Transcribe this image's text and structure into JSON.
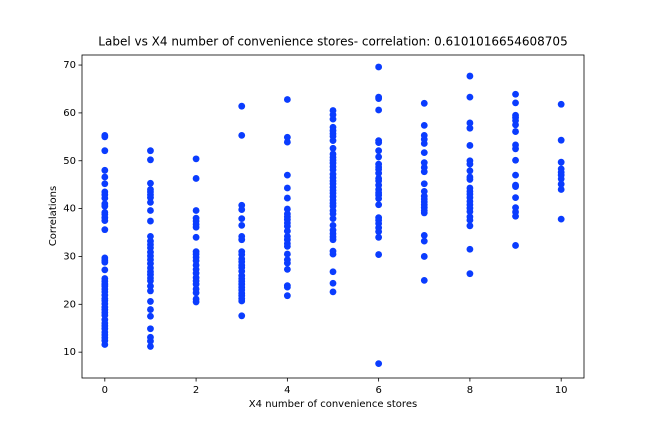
{
  "chart_data": {
    "type": "scatter",
    "title": "Label vs X4 number of convenience stores- correlation: 0.6101016654608705",
    "xlabel": "X4 number of convenience stores",
    "ylabel": "Correlations",
    "xlim": [
      -0.5,
      10.5
    ],
    "ylim": [
      4.6,
      72.1
    ],
    "xticks": [
      0,
      2,
      4,
      6,
      8,
      10
    ],
    "yticks": [
      10,
      20,
      30,
      40,
      50,
      60,
      70
    ],
    "color": "#0a3cff",
    "x": [
      0,
      0,
      0,
      0,
      0,
      0,
      0,
      0,
      0,
      0,
      0,
      0,
      0,
      0,
      0,
      0,
      0,
      0,
      0,
      0,
      0,
      0,
      0,
      0,
      0,
      0,
      0,
      0,
      0,
      0,
      0,
      0,
      0,
      0,
      0,
      0,
      0,
      0,
      0,
      0,
      0,
      0,
      0,
      1,
      1,
      1,
      1,
      1,
      1,
      1,
      1,
      1,
      1,
      1,
      1,
      1,
      1,
      1,
      1,
      1,
      1,
      1,
      1,
      1,
      1,
      1,
      1,
      1,
      1,
      1,
      1,
      1,
      1,
      1,
      1,
      2,
      2,
      2,
      2,
      2,
      2,
      2,
      2,
      2,
      2,
      2,
      2,
      2,
      2,
      2,
      2,
      2,
      2,
      2,
      2,
      2,
      2,
      3,
      3,
      3,
      3,
      3,
      3,
      3,
      3,
      3,
      3,
      3,
      3,
      3,
      3,
      3,
      3,
      3,
      3,
      3,
      3,
      3,
      3,
      3,
      3,
      3,
      3,
      4,
      4,
      4,
      4,
      4,
      4,
      4,
      4,
      4,
      4,
      4,
      4,
      4,
      4,
      4,
      4,
      4,
      4,
      4,
      4,
      4,
      4,
      4,
      4,
      5,
      5,
      5,
      5,
      5,
      5,
      5,
      5,
      5,
      5,
      5,
      5,
      5,
      5,
      5,
      5,
      5,
      5,
      5,
      5,
      5,
      5,
      5,
      5,
      5,
      5,
      5,
      5,
      5,
      5,
      5,
      5,
      5,
      5,
      5,
      5,
      5,
      5,
      5,
      6,
      6,
      6,
      6,
      6,
      6,
      6,
      6,
      6,
      6,
      6,
      6,
      6,
      6,
      6,
      6,
      6,
      6,
      6,
      6,
      6,
      6,
      6,
      6,
      6,
      6,
      6,
      6,
      7,
      7,
      7,
      7,
      7,
      7,
      7,
      7,
      7,
      7,
      7,
      7,
      7,
      7,
      7,
      7,
      7,
      7,
      7,
      7,
      7,
      7,
      8,
      8,
      8,
      8,
      8,
      8,
      8,
      8,
      8,
      8,
      8,
      8,
      8,
      8,
      8,
      8,
      8,
      8,
      8,
      8,
      8,
      8,
      8,
      9,
      9,
      9,
      9,
      9,
      9,
      9,
      9,
      9,
      9,
      9,
      9,
      9,
      9,
      9,
      9,
      9,
      9,
      10,
      10,
      10,
      10,
      10,
      10,
      10,
      10,
      10,
      10
    ],
    "y": [
      55.3,
      55,
      52.1,
      48,
      46.6,
      45.2,
      43.5,
      42.9,
      42.2,
      41,
      40.5,
      39.2,
      38.8,
      38.1,
      37.5,
      35.6,
      29.7,
      29.2,
      28.8,
      27.2,
      25.4,
      24.8,
      24.2,
      23.8,
      23.2,
      22.6,
      21.9,
      21.2,
      20.8,
      20.1,
      19.4,
      18.9,
      18.3,
      17.7,
      16.8,
      16.1,
      15.5,
      14.9,
      14.2,
      13.6,
      13,
      12.4,
      11.6,
      52.1,
      50.2,
      45.3,
      44,
      43.5,
      42.9,
      42.3,
      41.3,
      39.6,
      37.4,
      34.2,
      33.2,
      32.5,
      31.8,
      30.9,
      30.1,
      29.3,
      28.5,
      27.6,
      26.8,
      26.2,
      25.5,
      24.9,
      23.8,
      22.8,
      20.6,
      18.9,
      17.5,
      14.9,
      13.1,
      12.3,
      11.2,
      50.4,
      46.3,
      39.6,
      38,
      37.4,
      36.7,
      36.1,
      34,
      31,
      30.5,
      29.8,
      29.1,
      28.2,
      27.3,
      26.5,
      25.6,
      24.9,
      24.2,
      23.2,
      22.4,
      21.1,
      20.5,
      61.4,
      55.3,
      40.7,
      39.8,
      37.9,
      36.5,
      34.2,
      33.5,
      31,
      30.4,
      29.5,
      28.9,
      28.2,
      27.7,
      26.9,
      26,
      25.4,
      24.8,
      24.2,
      23.6,
      23,
      22.3,
      21.8,
      21.2,
      20.7,
      17.6,
      62.8,
      54.9,
      53.9,
      47,
      44.3,
      42.2,
      39.9,
      38.9,
      38.3,
      37.7,
      37,
      36.3,
      35.3,
      34.2,
      33.5,
      32.7,
      32.1,
      30.5,
      29.3,
      28.6,
      27.3,
      23.9,
      23.6,
      21.8,
      60.5,
      59.6,
      58.7,
      57,
      56.3,
      55.7,
      55.1,
      54.2,
      52.6,
      51.4,
      50.7,
      50.1,
      49.5,
      48.8,
      48.1,
      47.2,
      46.5,
      45.8,
      45.2,
      44.5,
      43.8,
      43.2,
      42.5,
      41.8,
      41.1,
      40.5,
      39.6,
      38.9,
      37.9,
      36.5,
      35.5,
      34.8,
      34.1,
      33.5,
      31.1,
      30.5,
      26.8,
      24.4,
      22.6,
      69.6,
      63.3,
      63,
      60.6,
      54.2,
      53.8,
      52.1,
      50.8,
      49.3,
      48.7,
      48.2,
      47.4,
      46.3,
      45.8,
      44.9,
      44,
      43.3,
      42.8,
      42.1,
      40.8,
      38.1,
      37.6,
      36.9,
      36,
      35.2,
      34,
      30.4,
      7.6,
      62,
      57.4,
      55.3,
      54.5,
      53.6,
      51.7,
      49.6,
      48.6,
      47.7,
      45.2,
      43.6,
      42.6,
      42,
      41.4,
      40.8,
      40.2,
      39.6,
      39.1,
      34.4,
      33.2,
      30,
      25,
      67.7,
      63.3,
      57.9,
      56.8,
      53.2,
      50,
      49.3,
      47.9,
      46.6,
      46.1,
      44.3,
      43.6,
      43,
      42.3,
      41.5,
      40.8,
      40.1,
      39.4,
      38.3,
      37.6,
      36.4,
      31.5,
      26.4,
      63.9,
      62.1,
      59.5,
      59,
      58.4,
      57.5,
      56.1,
      53.3,
      52.5,
      50.1,
      47,
      44.9,
      44.6,
      42.3,
      40.2,
      39.3,
      38.4,
      32.3,
      61.8,
      54.3,
      49.7,
      48.3,
      47.6,
      47,
      46.2,
      45.1,
      44,
      37.8
    ]
  }
}
